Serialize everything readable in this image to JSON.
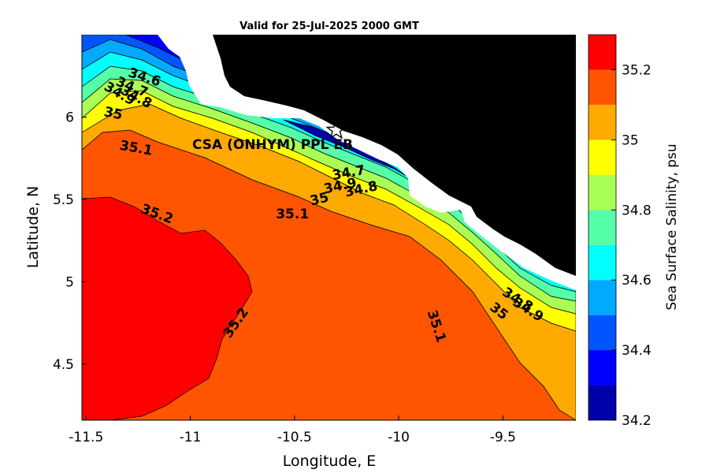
{
  "chart_data": {
    "type": "heatmap",
    "title": "Valid for 25-Jul-2025 2000 GMT",
    "xlabel": "Longitude, E",
    "ylabel": "Latitude, N",
    "colorbar_label": "Sea Surface Salinity, psu",
    "xlim": [
      -11.52,
      -9.15
    ],
    "ylim": [
      4.16,
      6.5
    ],
    "xticks": [
      -11.5,
      -11,
      -10.5,
      -10,
      -9.5
    ],
    "xtick_labels": [
      "-11.5",
      "-11",
      "-10.5",
      "-10",
      "-9.5"
    ],
    "yticks": [
      4.5,
      5,
      5.5,
      6
    ],
    "ytick_labels": [
      "4.5",
      "5",
      "5.5",
      "6"
    ],
    "colorbar_range": [
      34.2,
      35.3
    ],
    "colorbar_ticks": [
      34.2,
      34.4,
      34.6,
      34.8,
      35,
      35.2
    ],
    "colorbar_tick_labels": [
      "34.2",
      "34.4",
      "34.6",
      "34.8",
      "35",
      "35.2"
    ],
    "levels": [
      {
        "from": 34.2,
        "to": 34.3,
        "color": "#0000aa"
      },
      {
        "from": 34.3,
        "to": 34.4,
        "color": "#0000ff"
      },
      {
        "from": 34.4,
        "to": 34.5,
        "color": "#0055ff"
      },
      {
        "from": 34.5,
        "to": 34.6,
        "color": "#00aaff"
      },
      {
        "from": 34.6,
        "to": 34.7,
        "color": "#00ffff"
      },
      {
        "from": 34.7,
        "to": 34.8,
        "color": "#55ffaa"
      },
      {
        "from": 34.8,
        "to": 34.9,
        "color": "#aaff55"
      },
      {
        "from": 34.9,
        "to": 35.0,
        "color": "#ffff00"
      },
      {
        "from": 35.0,
        "to": 35.1,
        "color": "#ffaa00"
      },
      {
        "from": 35.1,
        "to": 35.2,
        "color": "#ff5500"
      },
      {
        "from": 35.2,
        "to": 35.3,
        "color": "#ff0000"
      }
    ],
    "land_color": "#000000",
    "contour_labels": [
      {
        "text": "34.6",
        "lon": -11.22,
        "lat": 6.24,
        "angle": 18
      },
      {
        "text": "34.7",
        "lon": -11.28,
        "lat": 6.18,
        "angle": 22
      },
      {
        "text": "34.8",
        "lon": -11.26,
        "lat": 6.12,
        "angle": 28
      },
      {
        "text": "34.9",
        "lon": -11.34,
        "lat": 6.14,
        "angle": 30
      },
      {
        "text": "35",
        "lon": -11.37,
        "lat": 6.02,
        "angle": 12
      },
      {
        "text": "35.1",
        "lon": -11.26,
        "lat": 5.81,
        "angle": 10
      },
      {
        "text": "35.2",
        "lon": -11.16,
        "lat": 5.41,
        "angle": 20
      },
      {
        "text": "34.7",
        "lon": -10.24,
        "lat": 5.66,
        "angle": -10
      },
      {
        "text": "34.9",
        "lon": -10.28,
        "lat": 5.58,
        "angle": -12
      },
      {
        "text": "34.8",
        "lon": -10.18,
        "lat": 5.56,
        "angle": -12
      },
      {
        "text": "35",
        "lon": -10.38,
        "lat": 5.5,
        "angle": -14
      },
      {
        "text": "35.1",
        "lon": -10.51,
        "lat": 5.41,
        "angle": 0
      },
      {
        "text": "35.2",
        "lon": -10.78,
        "lat": 4.75,
        "angle": -55
      },
      {
        "text": "35.1",
        "lon": -9.82,
        "lat": 4.73,
        "angle": 72
      },
      {
        "text": "34.8",
        "lon": -9.43,
        "lat": 4.89,
        "angle": 32
      },
      {
        "text": "34.9",
        "lon": -9.38,
        "lat": 4.83,
        "angle": 32
      },
      {
        "text": "35",
        "lon": -9.52,
        "lat": 4.82,
        "angle": 38
      }
    ],
    "station": {
      "label": "CSA (ONHYM) PPL EB",
      "lon": -10.3,
      "lat": 5.92,
      "marker": "star-icon"
    },
    "grid": false
  }
}
